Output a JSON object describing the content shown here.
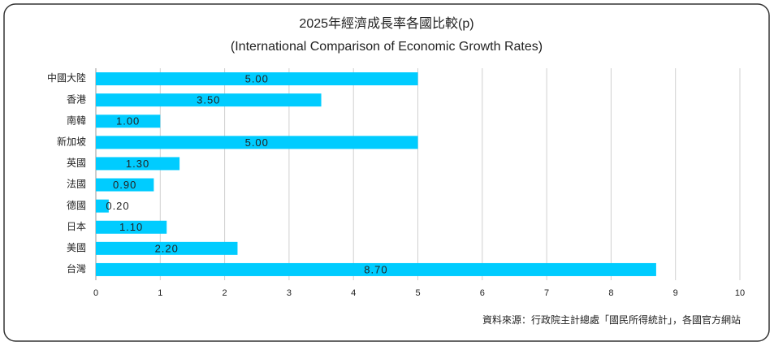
{
  "chart_data": {
    "type": "bar",
    "orientation": "horizontal",
    "title": "2025年經濟成長率各國比較(p)",
    "subtitle": "(International Comparison of Economic Growth Rates)",
    "categories": [
      "中國大陸",
      "香港",
      "南韓",
      "新加坡",
      "英國",
      "法國",
      "德國",
      "日本",
      "美國",
      "台灣"
    ],
    "values": [
      5,
      3.5,
      1,
      5,
      1.3,
      0.9,
      0.2,
      1.1,
      2.2,
      8.7
    ],
    "value_labels": [
      "5.00",
      "3.50",
      "1.00",
      "5.00",
      "1.30",
      "0.90",
      "0.20",
      "1.10",
      "2.20",
      "8.70"
    ],
    "color": "#00ccff",
    "xlim": [
      0,
      10
    ],
    "xticks": [
      0,
      1,
      2,
      3,
      4,
      5,
      6,
      7,
      8,
      9,
      10
    ],
    "grid": true,
    "source": "資料來源：行政院主計總處「國民所得統計」，各國官方網站"
  }
}
